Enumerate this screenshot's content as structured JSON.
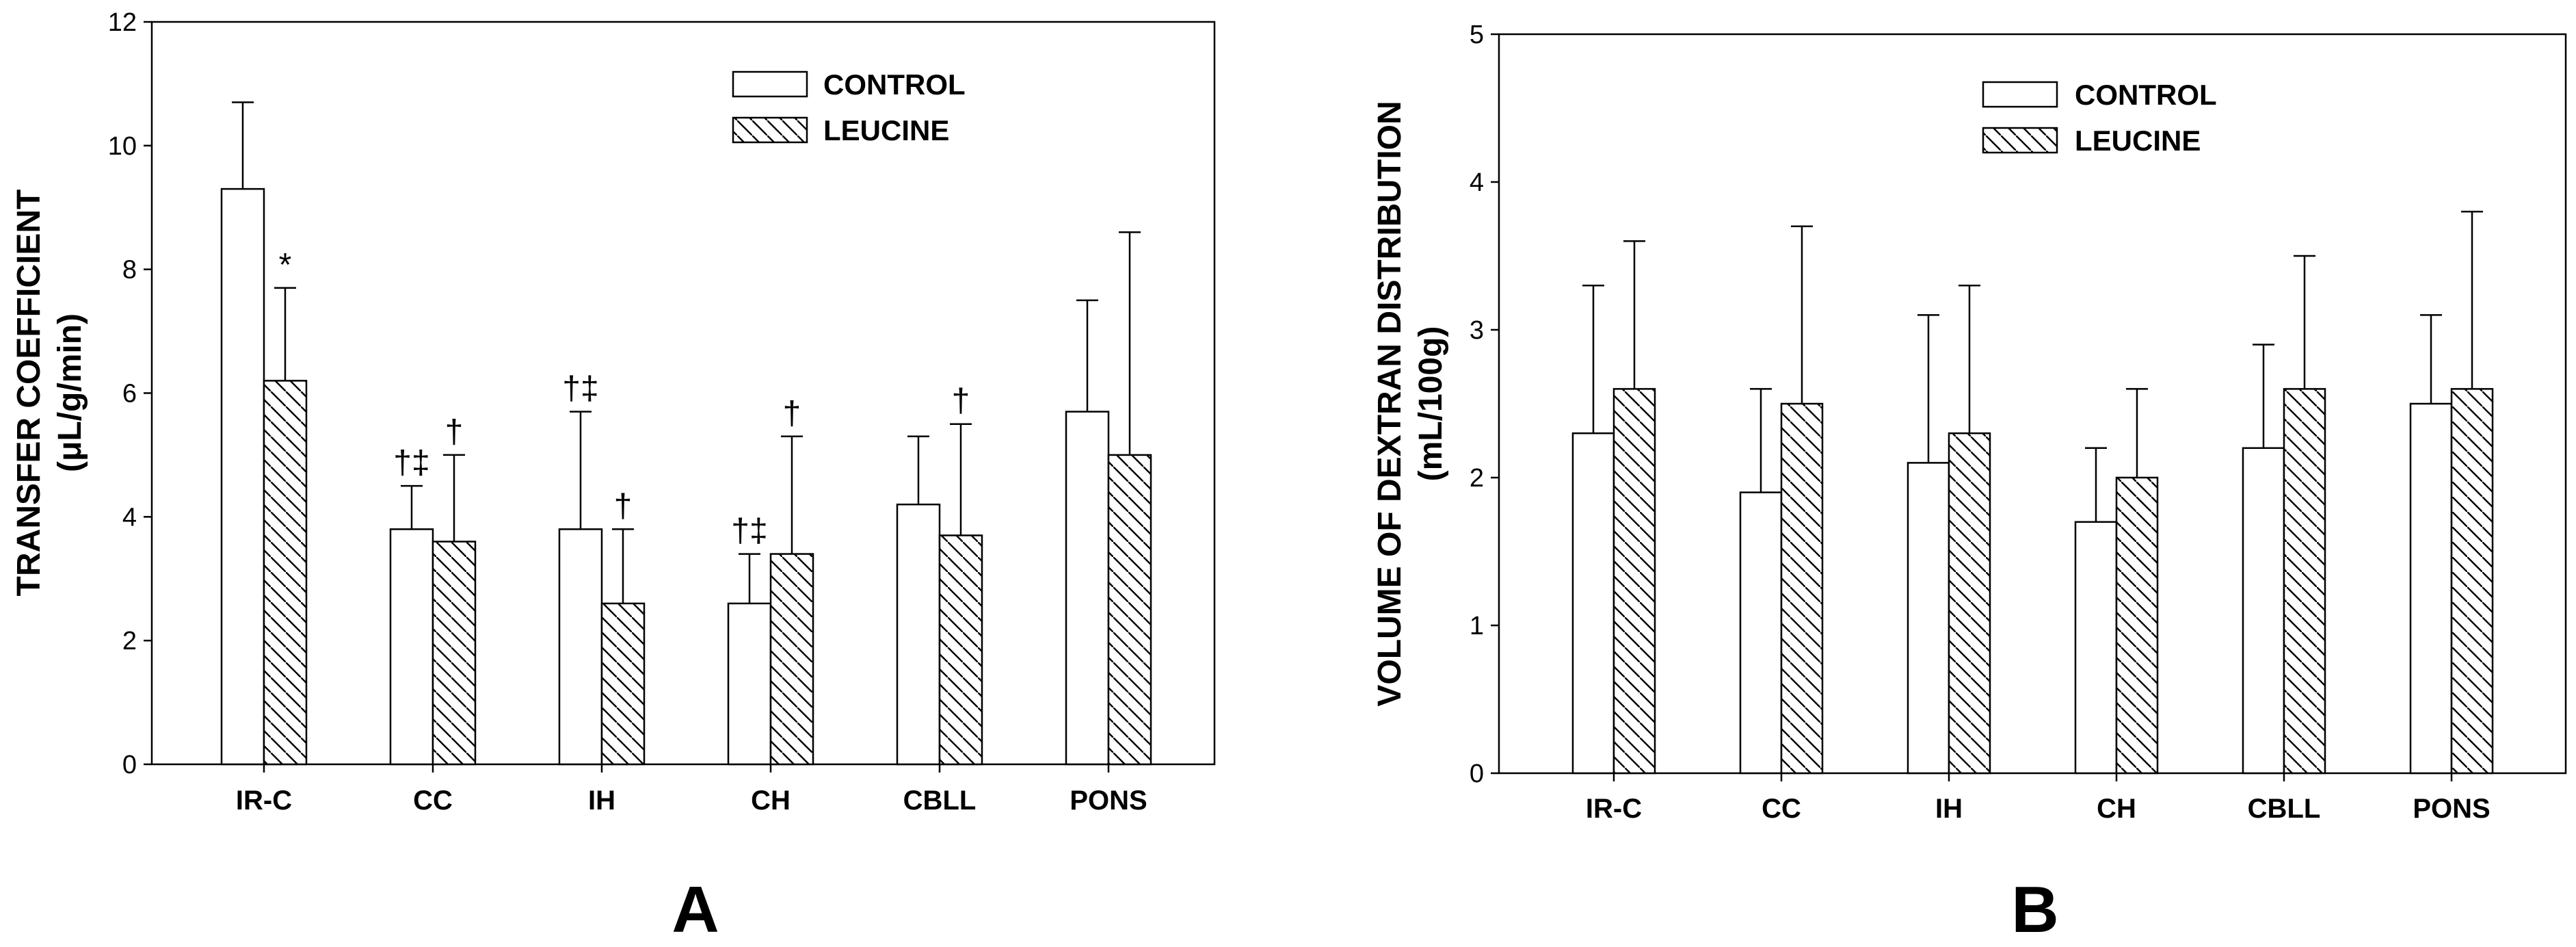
{
  "chart_data": [
    {
      "type": "bar",
      "panel_letter": "A",
      "ylabel": "TRANSFER COEFFICIENT",
      "ylabel_units": "(μL/g/min)",
      "ylim": [
        0,
        12
      ],
      "yticks": [
        0,
        2,
        4,
        6,
        8,
        10,
        12
      ],
      "grid": false,
      "legend_position": "top-right",
      "categories": [
        "IR-C",
        "CC",
        "IH",
        "CH",
        "CBLL",
        "PONS"
      ],
      "series": [
        {
          "name": "CONTROL",
          "pattern": "open",
          "values": [
            9.3,
            3.8,
            3.8,
            2.6,
            4.2,
            5.7
          ],
          "error_top": [
            10.7,
            4.5,
            5.7,
            3.4,
            5.3,
            7.5
          ]
        },
        {
          "name": "LEUCINE",
          "pattern": "hatched",
          "values": [
            6.2,
            3.6,
            2.6,
            3.4,
            3.7,
            5.0
          ],
          "error_top": [
            7.7,
            5.0,
            3.8,
            5.3,
            5.5,
            8.6
          ]
        }
      ],
      "annotations": [
        {
          "series": 1,
          "category": 0,
          "text": "*"
        },
        {
          "series": 0,
          "category": 1,
          "text": "†‡"
        },
        {
          "series": 1,
          "category": 1,
          "text": "†"
        },
        {
          "series": 0,
          "category": 2,
          "text": "†‡"
        },
        {
          "series": 1,
          "category": 2,
          "text": "†"
        },
        {
          "series": 0,
          "category": 3,
          "text": "†‡"
        },
        {
          "series": 1,
          "category": 3,
          "text": "†"
        },
        {
          "series": 1,
          "category": 4,
          "text": "†"
        }
      ]
    },
    {
      "type": "bar",
      "panel_letter": "B",
      "ylabel": "VOLUME OF DEXTRAN DISTRIBUTION",
      "ylabel_units": "(mL/100g)",
      "ylim": [
        0,
        5
      ],
      "yticks": [
        0,
        1,
        2,
        3,
        4,
        5
      ],
      "grid": false,
      "legend_position": "top-right",
      "categories": [
        "IR-C",
        "CC",
        "IH",
        "CH",
        "CBLL",
        "PONS"
      ],
      "series": [
        {
          "name": "CONTROL",
          "pattern": "open",
          "values": [
            2.3,
            1.9,
            2.1,
            1.7,
            2.2,
            2.5
          ],
          "error_top": [
            3.3,
            2.6,
            3.1,
            2.2,
            2.9,
            3.1
          ]
        },
        {
          "name": "LEUCINE",
          "pattern": "hatched",
          "values": [
            2.6,
            2.5,
            2.3,
            2.0,
            2.6,
            2.6
          ],
          "error_top": [
            3.6,
            3.7,
            3.3,
            2.6,
            3.5,
            3.8
          ]
        }
      ],
      "annotations": []
    }
  ]
}
